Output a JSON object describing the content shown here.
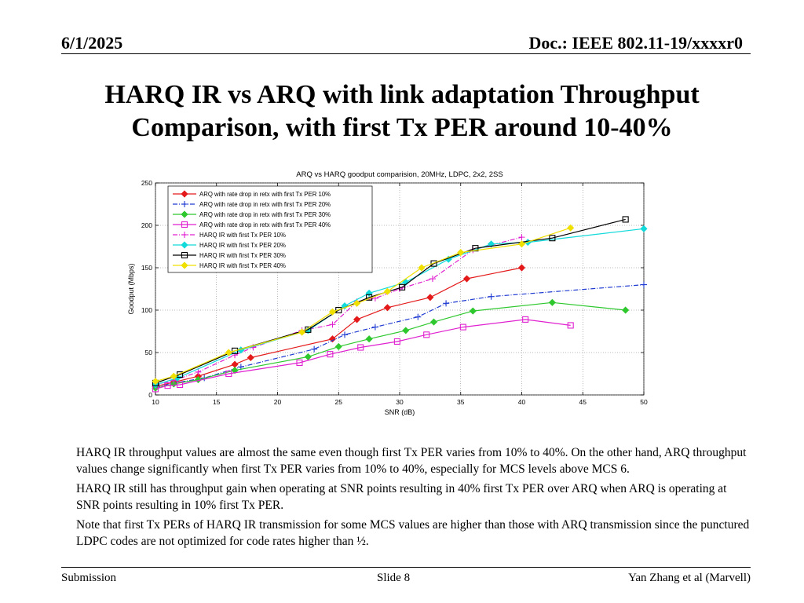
{
  "header": {
    "date": "6/1/2025",
    "doc": "Doc.: IEEE 802.11-19/xxxxr0"
  },
  "slide_title": {
    "line1": "HARQ IR vs ARQ with link adaptation Throughput",
    "line2": "Comparison, with first Tx PER around 10-40%"
  },
  "chart_data": {
    "type": "line",
    "title": "ARQ vs HARQ goodput comparision, 20MHz, LDPC, 2x2, 2SS",
    "xlabel": "SNR (dB)",
    "ylabel": "Goodput (Mbps)",
    "xlim": [
      10,
      50
    ],
    "ylim": [
      0,
      250
    ],
    "xticks": [
      10,
      15,
      20,
      25,
      30,
      35,
      40,
      45,
      50
    ],
    "yticks": [
      0,
      50,
      100,
      150,
      200,
      250
    ],
    "grid": true,
    "legend_position": "top-left",
    "series": [
      {
        "name": "ARQ with rate drop in retx with first Tx PER 10%",
        "color": "#e41a1a",
        "dash": "solid",
        "marker": "diamond",
        "x": [
          10,
          11.5,
          13.5,
          16.5,
          17.8,
          24.5,
          26.5,
          29,
          32.5,
          35.5,
          40
        ],
        "y": [
          10,
          15,
          22,
          36,
          44,
          66,
          89,
          103,
          115,
          137,
          150
        ]
      },
      {
        "name": "ARQ with rate drop in retx with first Tx PER 20%",
        "color": "#1f3bd1",
        "dash": "dashdot",
        "marker": "plus",
        "x": [
          10,
          11.5,
          14,
          17,
          23,
          25.5,
          28,
          31.5,
          33.8,
          37.5,
          50
        ],
        "y": [
          9,
          14,
          20,
          33,
          54,
          71,
          80,
          92,
          108,
          116,
          130
        ]
      },
      {
        "name": "ARQ with rate drop in retx with first Tx PER 30%",
        "color": "#2ec82e",
        "dash": "solid",
        "marker": "diamond",
        "x": [
          10,
          11.5,
          13.5,
          16.5,
          22.5,
          25,
          27.5,
          30.5,
          32.8,
          36,
          42.5,
          48.5
        ],
        "y": [
          8,
          13,
          18,
          29,
          45,
          57,
          66,
          76,
          86,
          99,
          109,
          100
        ]
      },
      {
        "name": "ARQ with rate drop in retx with first Tx PER 40%",
        "color": "#e020d0",
        "dash": "solid",
        "marker": "square",
        "x": [
          10,
          11,
          12,
          16,
          21.8,
          24.3,
          26.8,
          29.8,
          32.2,
          35.2,
          40.3,
          44
        ],
        "y": [
          7,
          11,
          12,
          25,
          38,
          48,
          56,
          63,
          71,
          80,
          89,
          82
        ]
      },
      {
        "name": "HARQ IR with first Tx PER 10%",
        "color": "#e020d0",
        "dash": "dashdot",
        "marker": "plus",
        "x": [
          10,
          11.5,
          13.5,
          16.5,
          18,
          22,
          24.5,
          26.5,
          28,
          30,
          32.7,
          36,
          40
        ],
        "y": [
          11,
          17,
          27,
          47,
          56,
          76,
          83,
          110,
          114,
          125,
          137,
          171,
          186
        ]
      },
      {
        "name": "HARQ IR with first Tx PER 20%",
        "color": "#12dada",
        "dash": "solid",
        "marker": "diamond",
        "x": [
          10,
          11.8,
          17,
          22.5,
          25.5,
          27.5,
          30.5,
          34,
          37.5,
          40.5,
          50
        ],
        "y": [
          12,
          20,
          53,
          76,
          105,
          120,
          133,
          160,
          178,
          180,
          196
        ]
      },
      {
        "name": "HARQ IR with first Tx PER 30%",
        "color": "#000000",
        "dash": "solid",
        "marker": "square",
        "x": [
          10,
          12,
          16.5,
          22.5,
          25,
          27.5,
          30.2,
          32.8,
          36.2,
          42.5,
          48.5
        ],
        "y": [
          14,
          24,
          52,
          77,
          100,
          115,
          127,
          155,
          173,
          185,
          207
        ]
      },
      {
        "name": "HARQ IR with first Tx PER 40%",
        "color": "#f0e000",
        "dash": "solid",
        "marker": "diamond",
        "x": [
          10,
          11.5,
          16,
          22,
          24.5,
          26.5,
          29,
          31.8,
          35,
          40,
          44
        ],
        "y": [
          16,
          22,
          50,
          74,
          98,
          108,
          122,
          150,
          168,
          178,
          197
        ]
      }
    ]
  },
  "body": {
    "p1": "HARQ IR throughput values are almost the same even though first Tx PER varies from 10% to 40%. On the other hand, ARQ throughput values change significantly when first Tx PER varies from 10% to 40%, especially for MCS levels above MCS 6.",
    "p2": "HARQ IR still has throughput gain when operating at SNR points resulting in 40% first Tx PER over ARQ when ARQ is operating at SNR points resulting in 10% first Tx PER.",
    "p3": "Note that first Tx PERs of HARQ IR transmission for some MCS values are higher than those with ARQ transmission since the punctured LDPC codes are not optimized for code rates higher than ½."
  },
  "footer": {
    "left": "Submission",
    "center": "Slide 8",
    "right": "Yan Zhang et al (Marvell)"
  }
}
